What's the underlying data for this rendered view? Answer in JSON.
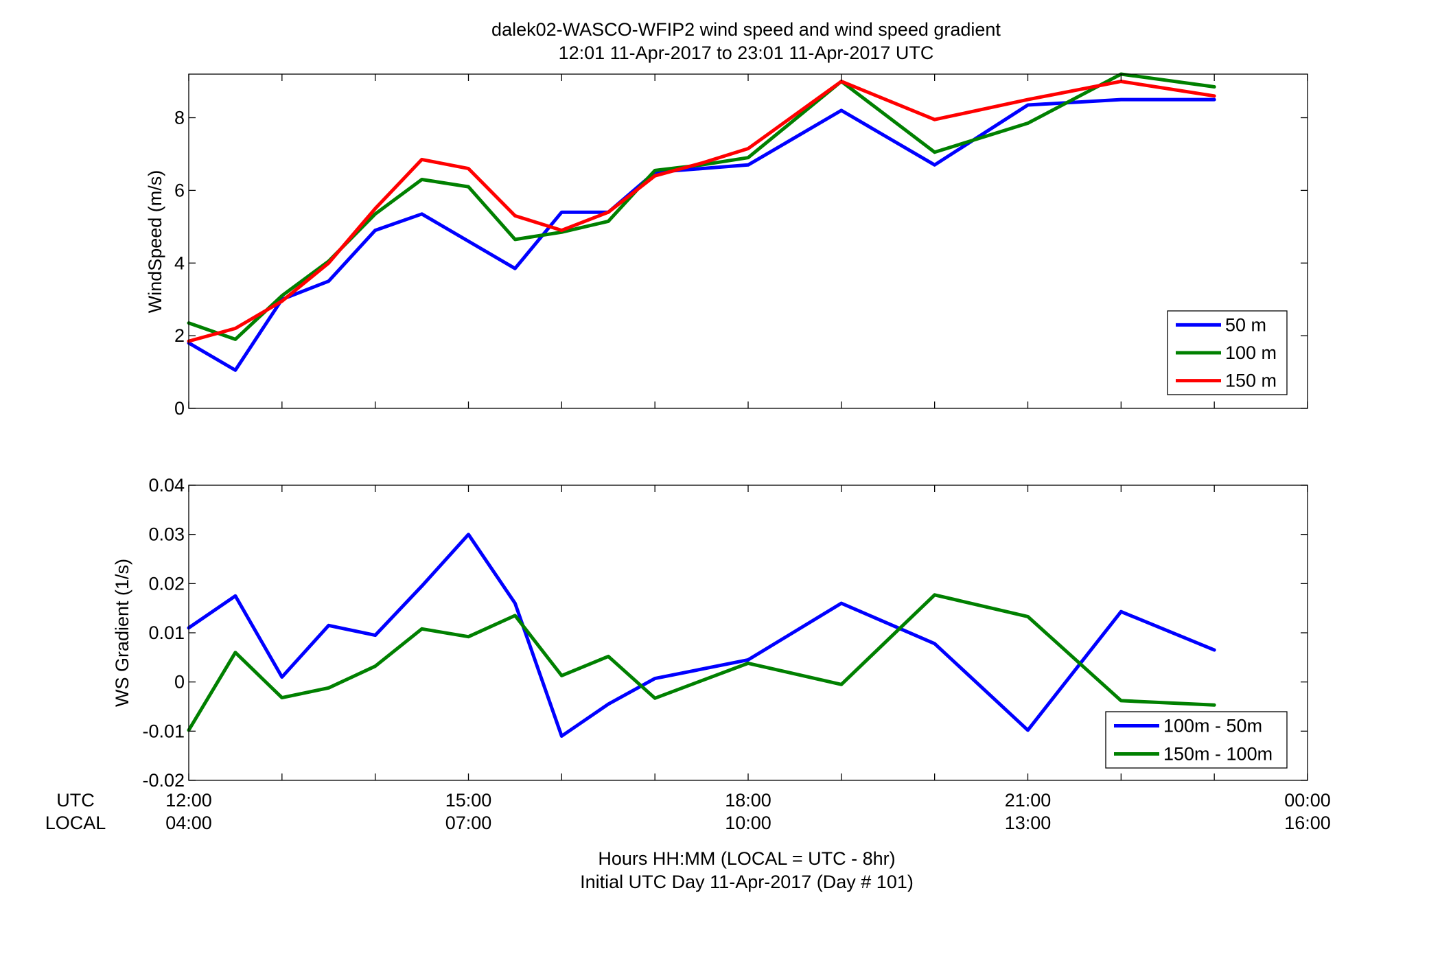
{
  "figure": {
    "title_line1": "dalek02-WASCO-WFIP2  wind speed and wind speed gradient",
    "title_line2": "12:01 11-Apr-2017 to 23:01 11-Apr-2017  UTC",
    "xlabel_line1": "Hours HH:MM  (LOCAL = UTC - 8hr)",
    "xlabel_line2": "Initial UTC Day 11-Apr-2017 (Day # 101)",
    "row_label_utc": "UTC",
    "row_label_local": "LOCAL"
  },
  "chart_data": [
    {
      "type": "line",
      "ylabel": "WindSpeed (m/s)",
      "xlim": [
        12,
        24
      ],
      "ylim": [
        0,
        9.2
      ],
      "yticks": [
        0,
        2,
        4,
        6,
        8
      ],
      "ytick_labels": [
        "0",
        "2",
        "4",
        "6",
        "8"
      ],
      "grid": false,
      "legend_position": "bottom-right",
      "x": [
        12,
        12.5,
        13,
        13.5,
        14,
        14.5,
        15,
        15.5,
        16,
        16.5,
        17,
        17.5,
        18,
        19,
        20,
        21,
        22,
        23
      ],
      "series": [
        {
          "name": "50 m",
          "color": "#0000ff",
          "values": [
            1.8,
            1.05,
            3.0,
            3.5,
            4.9,
            5.35,
            4.6,
            3.85,
            5.4,
            5.4,
            6.5,
            6.6,
            6.7,
            8.2,
            6.7,
            8.35,
            8.5,
            8.5
          ]
        },
        {
          "name": "100 m",
          "color": "#008000",
          "values": [
            2.35,
            1.9,
            3.1,
            4.05,
            5.35,
            6.3,
            6.1,
            4.65,
            4.85,
            5.15,
            6.55,
            6.7,
            6.9,
            9.0,
            7.05,
            7.85,
            9.2,
            8.85
          ]
        },
        {
          "name": "150 m",
          "color": "#ff0000",
          "values": [
            1.85,
            2.2,
            2.95,
            4.0,
            5.5,
            6.85,
            6.6,
            5.3,
            4.9,
            5.4,
            6.4,
            6.75,
            7.15,
            9.0,
            7.95,
            8.5,
            9.0,
            8.6
          ]
        }
      ]
    },
    {
      "type": "line",
      "ylabel": "WS Gradient (1/s)",
      "xlim": [
        12,
        24
      ],
      "ylim": [
        -0.02,
        0.04
      ],
      "yticks": [
        -0.02,
        -0.01,
        0,
        0.01,
        0.02,
        0.03,
        0.04
      ],
      "ytick_labels": [
        "-0.02",
        "-0.01",
        "0",
        "0.01",
        "0.02",
        "0.03",
        "0.04"
      ],
      "grid": false,
      "legend_position": "bottom-right",
      "x": [
        12,
        12.5,
        13,
        13.5,
        14,
        14.5,
        15,
        15.5,
        16,
        16.5,
        17,
        17.5,
        18,
        19,
        20,
        21,
        22,
        23
      ],
      "series": [
        {
          "name": "100m - 50m",
          "color": "#0000ff",
          "values": [
            0.011,
            0.0175,
            0.001,
            0.0115,
            0.0095,
            0.0195,
            0.03,
            0.016,
            -0.011,
            -0.0045,
            0.0007,
            null,
            0.0045,
            0.016,
            0.0078,
            -0.0098,
            0.0143,
            0.0065
          ]
        },
        {
          "name": "150m - 100m",
          "color": "#008000",
          "values": [
            -0.0098,
            0.006,
            -0.0032,
            -0.0012,
            0.0032,
            0.0108,
            0.0092,
            0.0135,
            0.0013,
            0.0052,
            -0.0033,
            null,
            0.0038,
            -0.0005,
            0.0177,
            0.0133,
            -0.0038,
            -0.0047
          ]
        }
      ]
    }
  ],
  "x_axis": {
    "ticks": [
      12,
      15,
      18,
      21,
      24
    ],
    "utc_labels": [
      "12:00",
      "15:00",
      "18:00",
      "21:00",
      "00:00"
    ],
    "local_labels": [
      "04:00",
      "07:00",
      "10:00",
      "13:00",
      "16:00"
    ],
    "minor_step": 1
  }
}
